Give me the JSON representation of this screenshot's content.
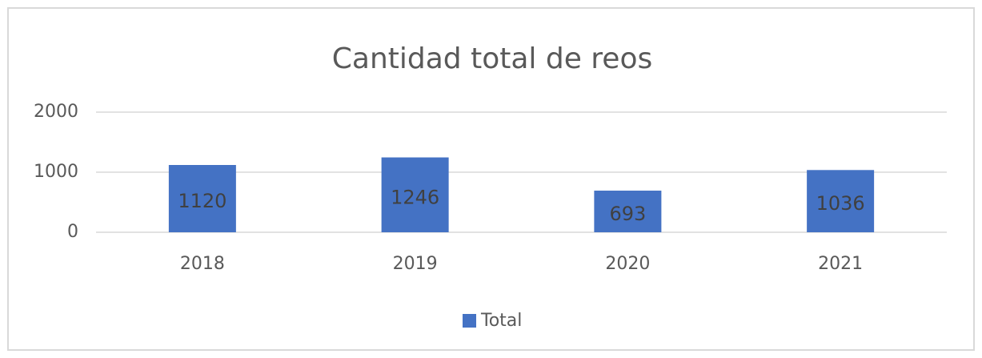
{
  "chart_data": {
    "type": "bar",
    "title": "Cantidad total de reos",
    "categories": [
      "2018",
      "2019",
      "2020",
      "2021"
    ],
    "series": [
      {
        "name": "Total",
        "color": "#4472c4",
        "values": [
          1120,
          1246,
          693,
          1036
        ]
      }
    ],
    "ylim": [
      0,
      2000
    ],
    "yticks": [
      0,
      1000,
      2000
    ],
    "grid": true,
    "legend": "bottom"
  }
}
